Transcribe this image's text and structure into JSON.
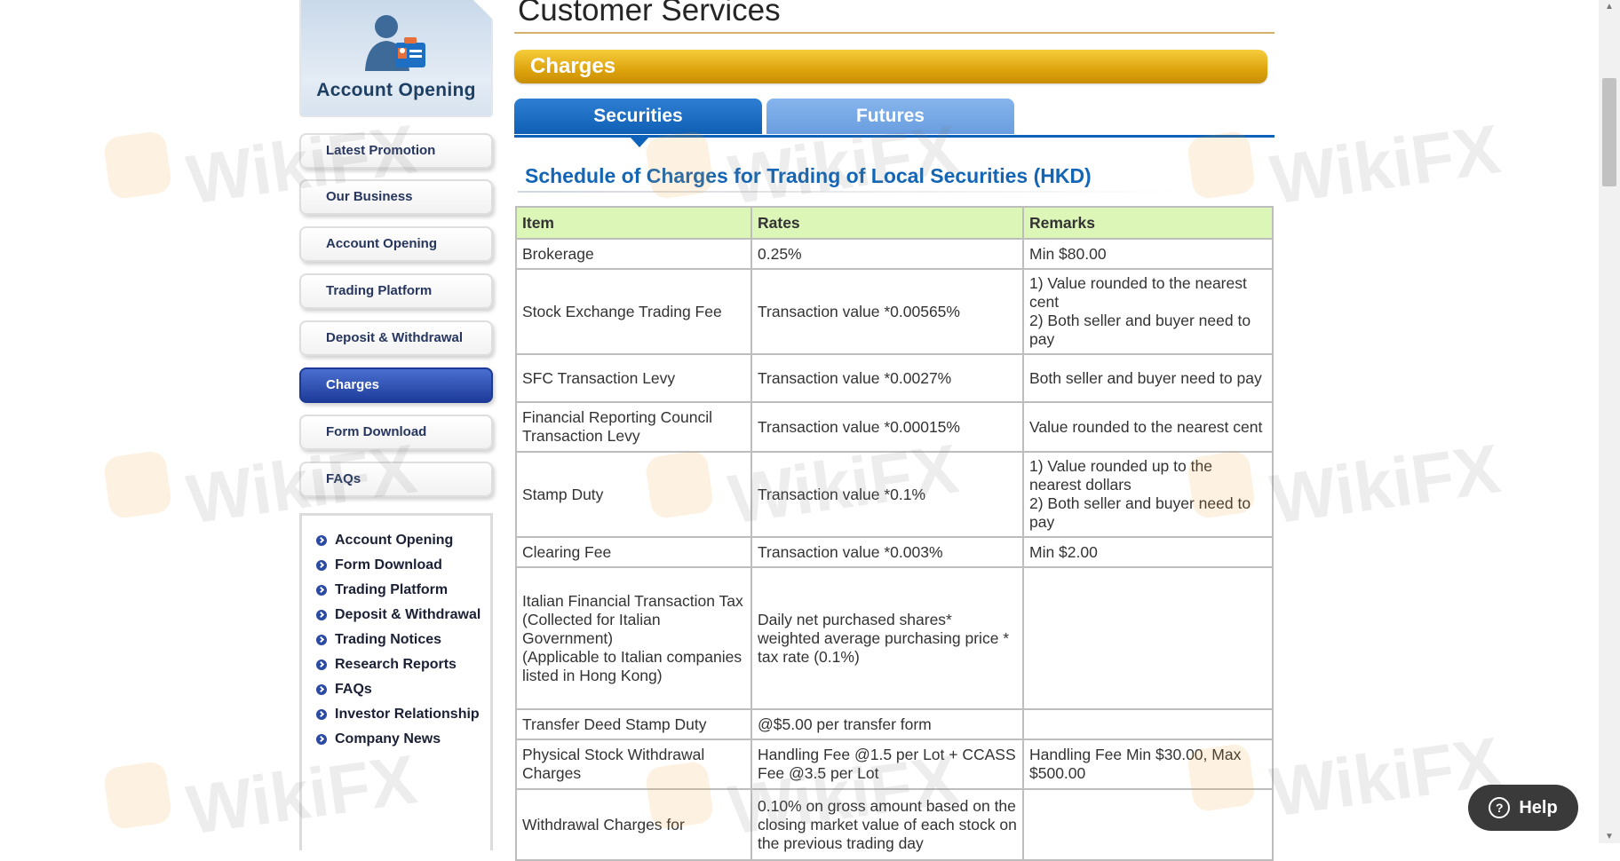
{
  "sidebar": {
    "banner_title": "Account Opening",
    "nav": [
      {
        "label": "Latest Promotion",
        "active": false
      },
      {
        "label": "Our Business",
        "active": false
      },
      {
        "label": "Account Opening",
        "active": false
      },
      {
        "label": "Trading Platform",
        "active": false
      },
      {
        "label": "Deposit & Withdrawal",
        "active": false
      },
      {
        "label": "Charges",
        "active": true
      },
      {
        "label": "Form Download",
        "active": false
      },
      {
        "label": "FAQs",
        "active": false
      }
    ],
    "quick_links": [
      "Account Opening",
      "Form Download",
      "Trading Platform",
      "Deposit & Withdrawal",
      "Trading Notices",
      "Research Reports",
      "FAQs",
      "Investor Relationship",
      "Company News"
    ]
  },
  "main": {
    "page_title": "Customer Services",
    "section_bar": "Charges",
    "tabs": [
      {
        "label": "Securities",
        "active": true
      },
      {
        "label": "Futures",
        "active": false
      }
    ],
    "schedule_title": "Schedule of Charges for Trading of Local Securities (HKD)",
    "table": {
      "headers": [
        "Item",
        "Rates",
        "Remarks"
      ],
      "rows": [
        [
          "Brokerage",
          "0.25%",
          "Min $80.00"
        ],
        [
          "Stock Exchange Trading Fee",
          "Transaction value *0.00565%",
          "1) Value rounded to the nearest cent\n2) Both seller and buyer need to pay"
        ],
        [
          "SFC Transaction Levy",
          "Transaction value *0.0027%",
          "Both seller and buyer need to pay"
        ],
        [
          "Financial Reporting Council Transaction Levy",
          "Transaction value *0.00015%",
          "Value rounded to the nearest cent"
        ],
        [
          "Stamp Duty",
          "Transaction value *0.1%",
          "1) Value rounded up to the nearest dollars\n2) Both seller and buyer need to pay"
        ],
        [
          "Clearing Fee",
          "Transaction value *0.003%",
          "Min $2.00"
        ],
        [
          "Italian Financial Transaction Tax\n(Collected for Italian Government)\n(Applicable to Italian companies listed in Hong Kong)",
          "Daily net purchased shares* weighted average purchasing price * tax rate (0.1%)",
          ""
        ],
        [
          "Transfer Deed Stamp Duty",
          "@$5.00 per transfer form",
          ""
        ],
        [
          "Physical Stock Withdrawal Charges",
          "Handling Fee @1.5 per Lot + CCASS Fee @3.5 per Lot",
          "Handling Fee Min $30.00, Max $500.00"
        ],
        [
          "Withdrawal Charges for",
          "0.10% on gross amount based on the closing market value of each stock on the previous trading day",
          ""
        ]
      ]
    }
  },
  "watermark": "WikiFX",
  "help_label": "Help",
  "colors": {
    "accent_blue": "#0f62b9",
    "section_gold": "#dba00a",
    "header_green": "#dcf6b8",
    "active_nav": "#1e3c9a"
  }
}
